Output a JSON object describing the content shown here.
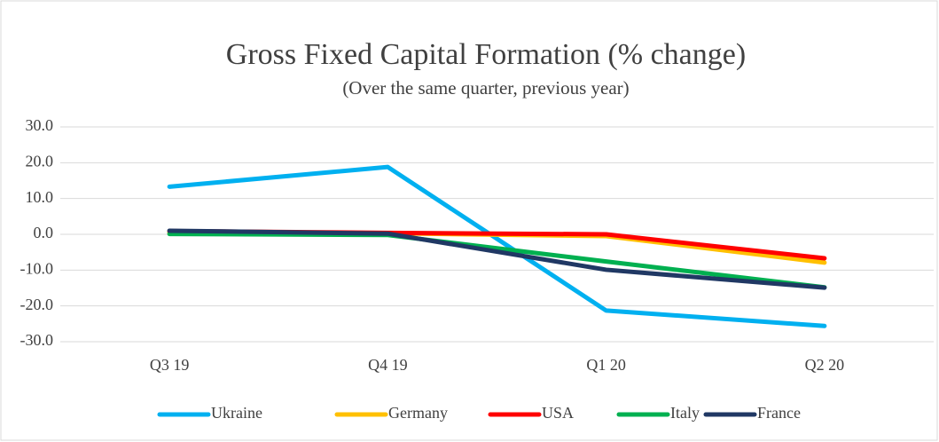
{
  "chart_data": {
    "type": "line",
    "title": "Gross Fixed Capital Formation (% change)",
    "subtitle": "(Over the same quarter, previous year)",
    "categories": [
      "Q3 19",
      "Q4 19",
      "Q1 20",
      "Q2 20"
    ],
    "series": [
      {
        "name": "Ukraine",
        "color": "#00b0f0",
        "values": [
          13.3,
          18.8,
          -21.3,
          -25.6
        ]
      },
      {
        "name": "Germany",
        "color": "#ffc000",
        "values": [
          0.5,
          0.3,
          -0.5,
          -7.9
        ]
      },
      {
        "name": "USA",
        "color": "#ff0000",
        "values": [
          0.9,
          0.4,
          0.0,
          -6.7
        ]
      },
      {
        "name": "Italy",
        "color": "#00b050",
        "values": [
          0.1,
          -0.2,
          -7.6,
          -14.8
        ]
      },
      {
        "name": "France",
        "color": "#203864",
        "values": [
          1.0,
          0.2,
          -9.9,
          -14.9
        ]
      }
    ],
    "ylim": [
      -30,
      30
    ],
    "yticks": [
      {
        "value": 30,
        "label": "30.0"
      },
      {
        "value": 20,
        "label": "20.0"
      },
      {
        "value": 10,
        "label": "10.0"
      },
      {
        "value": 0,
        "label": "0.0"
      },
      {
        "value": -10,
        "label": "-10.0"
      },
      {
        "value": -20,
        "label": "-20.0"
      },
      {
        "value": -30,
        "label": "-30.0"
      }
    ],
    "grid": true,
    "legend": "bottom"
  }
}
